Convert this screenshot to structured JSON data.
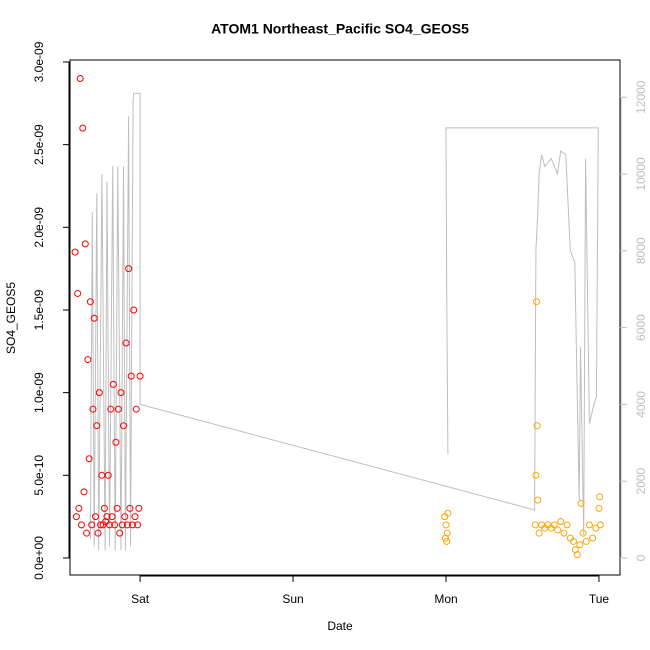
{
  "chart_data": {
    "type": "scatter",
    "title": "ATOM1 Northeast_Pacific SO4_GEOS5",
    "x_label": "Date",
    "y_label": "SO4_GEOS5",
    "xlim": [
      -11,
      75.3
    ],
    "xticks": [
      {
        "value": 0,
        "label": "Sat"
      },
      {
        "value": 24,
        "label": "Sun"
      },
      {
        "value": 48,
        "label": "Mon"
      },
      {
        "value": 72,
        "label": "Tue"
      }
    ],
    "ylim": [
      -1.03e-10,
      3.012e-09
    ],
    "yticks": [
      {
        "value": 0,
        "label": "0.0e+00"
      },
      {
        "value": 5e-10,
        "label": "5.0e-10"
      },
      {
        "value": 1e-09,
        "label": "1.0e-09"
      },
      {
        "value": 1.5e-09,
        "label": "1.5e-09"
      },
      {
        "value": 2e-09,
        "label": "2.0e-09"
      },
      {
        "value": 2.5e-09,
        "label": "2.5e-09"
      },
      {
        "value": 3e-09,
        "label": "3.0e-09"
      }
    ],
    "y2lim": [
      -443,
      12969
    ],
    "y2ticks": [
      0,
      2000,
      4000,
      6000,
      8000,
      10000,
      12000
    ],
    "series": [
      {
        "type": "scatter",
        "color": "#ff0000",
        "x": [
          -10.2,
          -10.0,
          -9.8,
          -9.6,
          -9.4,
          -9.2,
          -9.0,
          -8.8,
          -8.6,
          -8.4,
          -8.2,
          -8.0,
          -7.8,
          -7.6,
          -7.4,
          -7.2,
          -7.0,
          -6.8,
          -6.6,
          -6.4,
          -6.2,
          -6.0,
          -5.8,
          -5.6,
          -5.4,
          -5.2,
          -5.0,
          -4.8,
          -4.6,
          -4.4,
          -4.2,
          -4.0,
          -3.8,
          -3.6,
          -3.4,
          -3.2,
          -3.0,
          -2.8,
          -2.6,
          -2.4,
          -2.2,
          -2.0,
          -1.8,
          -1.6,
          -1.4,
          -1.2,
          -1.0,
          -0.8,
          -0.6,
          -0.4,
          -0.2,
          0.0
        ],
        "values": [
          1.85e-09,
          2.5e-10,
          1.6e-09,
          3e-10,
          2.9e-09,
          2e-10,
          2.6e-09,
          4e-10,
          1.9e-09,
          1.5e-10,
          1.2e-09,
          6e-10,
          1.55e-09,
          2e-10,
          9e-10,
          1.45e-09,
          2.5e-10,
          8e-10,
          1.5e-10,
          1e-09,
          2e-10,
          5e-10,
          2e-10,
          3e-10,
          2.2e-10,
          2.5e-10,
          5e-10,
          2e-10,
          9e-10,
          2.5e-10,
          1.05e-09,
          2e-10,
          7e-10,
          3e-10,
          9e-10,
          1.5e-10,
          1e-09,
          2e-10,
          8e-10,
          2.5e-10,
          1.3e-09,
          2e-10,
          1.75e-09,
          3e-10,
          1.1e-09,
          2e-10,
          1.5e-09,
          2.5e-10,
          9e-10,
          2e-10,
          3e-10,
          1.1e-09
        ]
      },
      {
        "type": "scatter",
        "color": "#ffa500",
        "x": [
          47.8,
          47.9,
          48.0,
          48.1,
          48.2,
          48.3,
          62.0,
          62.1,
          62.2,
          62.3,
          62.4,
          62.6,
          63.0,
          63.5,
          64.0,
          64.5,
          65.0,
          65.5,
          66.0,
          66.5,
          67.0,
          67.5,
          68.0,
          68.3,
          68.6,
          69.0,
          69.2,
          69.5,
          70.0,
          70.5,
          71.0,
          71.5,
          72.0,
          72.1,
          72.2
        ],
        "values": [
          2.5e-10,
          1.2e-10,
          2e-10,
          1e-10,
          1.5e-10,
          2.7e-10,
          2e-10,
          5e-10,
          1.55e-09,
          8e-10,
          3.5e-10,
          1.5e-10,
          2e-10,
          1.8e-10,
          2e-10,
          1.8e-10,
          2e-10,
          1.7e-10,
          2.2e-10,
          1.5e-10,
          2e-10,
          1.2e-10,
          1e-10,
          5e-11,
          2e-11,
          8e-11,
          3.3e-10,
          1.5e-10,
          1e-10,
          2e-10,
          1.2e-10,
          1.8e-10,
          3e-10,
          3.7e-10,
          2e-10
        ]
      },
      {
        "type": "line",
        "axis": "y2",
        "color": "#bebebe",
        "x": [
          -7.8,
          -7.5,
          -7.2,
          -6.8,
          -6.5,
          -6.0,
          -5.5,
          -5.2,
          -4.8,
          -4.3,
          -3.9,
          -3.5,
          -3.0,
          -2.6,
          -2.3,
          -1.8,
          -1.5,
          -1.1,
          -1.0,
          0,
          0,
          61.9,
          62.1,
          62.4,
          62.6,
          63.0,
          63.5,
          64.5,
          65.5,
          66.0,
          66.8,
          67.5,
          68.2,
          68.9,
          69.1,
          69.6,
          69.9,
          70.5,
          71.2,
          71.6,
          71.9,
          48.0,
          48.1,
          48.3
        ],
        "values": [
          500,
          9000,
          300,
          9500,
          200,
          10000,
          200,
          9800,
          300,
          10200,
          200,
          10200,
          200,
          10200,
          200,
          11500,
          300,
          11900,
          12100,
          12100,
          4000,
          1250,
          8000,
          9000,
          10000,
          10500,
          10200,
          10400,
          10000,
          10600,
          10500,
          8000,
          7700,
          1500,
          5500,
          600,
          10400,
          3500,
          4000,
          4200,
          11200,
          11200,
          7000,
          2700
        ]
      }
    ]
  }
}
